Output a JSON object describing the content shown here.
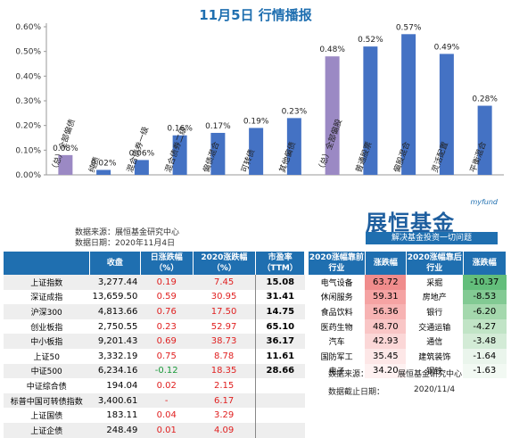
{
  "title": "11月5日 行情播报",
  "chart_data": {
    "type": "bar",
    "categories": [
      "（总）全部偏债",
      "纯债",
      "混合债券一级",
      "混合债券二级",
      "偏债混合",
      "可转债",
      "其他偏债",
      "（总）全部偏股",
      "普通股票",
      "偏股混合",
      "灵活配置",
      "平衡混合"
    ],
    "values": [
      0.08,
      0.02,
      0.06,
      0.16,
      0.17,
      0.19,
      0.23,
      0.48,
      0.52,
      0.57,
      0.49,
      0.28
    ],
    "value_labels": [
      "0.08%",
      "0.02%",
      "0.06%",
      "0.16%",
      "0.17%",
      "0.19%",
      "0.23%",
      "0.48%",
      "0.52%",
      "0.57%",
      "0.49%",
      "0.28%"
    ],
    "highlight_colors": [
      "#9b89c4",
      "#4472c4",
      "#4472c4",
      "#4472c4",
      "#4472c4",
      "#4472c4",
      "#4472c4",
      "#9b89c4",
      "#4472c4",
      "#4472c4",
      "#4472c4",
      "#4472c4"
    ],
    "y_ticks": [
      "0.00%",
      "0.10%",
      "0.20%",
      "0.30%",
      "0.40%",
      "0.50%",
      "0.60%"
    ],
    "ylim": [
      0,
      0.6
    ],
    "grid": false,
    "legend": "none"
  },
  "notes": {
    "source": "数据来源：展恒基金研究中心",
    "date": "数据日期：2020年11月4日"
  },
  "brand": {
    "tag": "myfund",
    "name": "展恒基金",
    "slogan": "解决基金投资一切问题"
  },
  "indices": {
    "headers": [
      "",
      "收盘",
      "日涨跌幅（%）",
      "2020涨跌幅（%）",
      "市盈率（TTM）"
    ],
    "rows": [
      {
        "name": "上证指数",
        "close": "3,277.44",
        "day": "0.19",
        "ytd": "7.45",
        "pe": "15.08",
        "dc": "red",
        "yc": "red"
      },
      {
        "name": "深证成指",
        "close": "13,659.50",
        "day": "0.59",
        "ytd": "30.95",
        "pe": "31.41",
        "dc": "red",
        "yc": "red"
      },
      {
        "name": "沪深300",
        "close": "4,813.66",
        "day": "0.76",
        "ytd": "17.50",
        "pe": "14.75",
        "dc": "red",
        "yc": "red"
      },
      {
        "name": "创业板指",
        "close": "2,750.55",
        "day": "0.23",
        "ytd": "52.97",
        "pe": "65.10",
        "dc": "red",
        "yc": "red"
      },
      {
        "name": "中小板指",
        "close": "9,201.43",
        "day": "0.69",
        "ytd": "38.73",
        "pe": "36.17",
        "dc": "red",
        "yc": "red"
      },
      {
        "name": "上证50",
        "close": "3,332.19",
        "day": "0.75",
        "ytd": "8.78",
        "pe": "11.61",
        "dc": "red",
        "yc": "red"
      },
      {
        "name": "中证500",
        "close": "6,234.16",
        "day": "-0.12",
        "ytd": "18.35",
        "pe": "28.66",
        "dc": "grn",
        "yc": "red"
      },
      {
        "name": "中证综合债",
        "close": "194.04",
        "day": "0.02",
        "ytd": "2.15",
        "pe": "",
        "dc": "red",
        "yc": "red"
      },
      {
        "name": "标普中国可转债指数",
        "close": "3,400.61",
        "day": "-",
        "ytd": "6.17",
        "pe": "",
        "dc": "red",
        "yc": "red"
      },
      {
        "name": "上证国债",
        "close": "183.11",
        "day": "0.04",
        "ytd": "3.29",
        "pe": "",
        "dc": "red",
        "yc": "red"
      },
      {
        "name": "上证企债",
        "close": "248.49",
        "day": "0.01",
        "ytd": "4.09",
        "pe": "",
        "dc": "red",
        "yc": "red"
      }
    ]
  },
  "sectors": {
    "headers": [
      "2020涨幅靠前行业",
      "涨跌幅",
      "2020涨幅靠后行业",
      "涨跌幅"
    ],
    "rows": [
      {
        "top": "电气设备",
        "topv": "63.72",
        "topc": "#f08c8c",
        "bot": "采掘",
        "botv": "-10.37",
        "botc": "#63be7b"
      },
      {
        "top": "休闲服务",
        "topv": "59.31",
        "topc": "#f5a3a3",
        "bot": "房地产",
        "botv": "-8.53",
        "botc": "#82ca93"
      },
      {
        "top": "食品饮料",
        "topv": "56.36",
        "topc": "#f7b3b3",
        "bot": "银行",
        "botv": "-6.20",
        "botc": "#a4d8ad"
      },
      {
        "top": "医药生物",
        "topv": "48.70",
        "topc": "#f9c6c6",
        "bot": "交通运输",
        "botv": "-4.27",
        "botc": "#c1e4c6"
      },
      {
        "top": "汽车",
        "topv": "42.93",
        "topc": "#fbd7d7",
        "bot": "通信",
        "botv": "-3.48",
        "botc": "#d3ebd6"
      },
      {
        "top": "国防军工",
        "topv": "35.45",
        "topc": "#fde7e7",
        "bot": "建筑装饰",
        "botv": "-1.64",
        "botc": "#eaf5ec"
      },
      {
        "top": "电子",
        "topv": "34.20",
        "topc": "#fef1f1",
        "bot": "钢铁",
        "botv": "-1.63",
        "botc": "#f2f9f3"
      }
    ]
  },
  "footer": {
    "source_label": "数据来源：",
    "source_value": "展恒基金研究中心",
    "date_label": "数据截止日期：",
    "date_value": "2020/11/4"
  }
}
